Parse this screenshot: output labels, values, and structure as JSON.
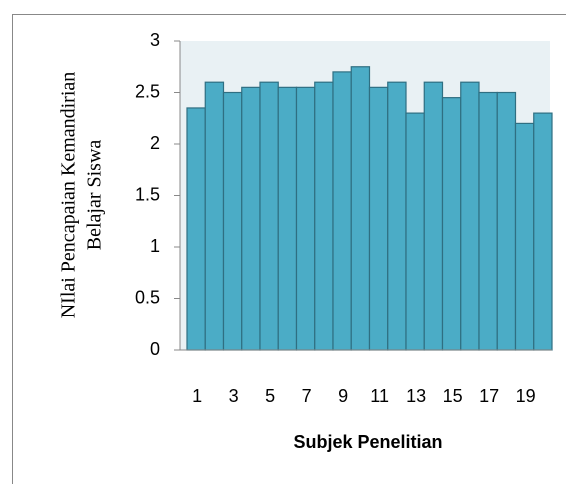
{
  "chart_data": {
    "type": "bar",
    "xlabel": "Subjek Penelitian",
    "ylabel": [
      "NIlai Pencapaian Kemandirian",
      "Belajar Siswa"
    ],
    "categories": [
      "1",
      null,
      "3",
      null,
      "5",
      null,
      "7",
      null,
      "9",
      null,
      "11",
      null,
      "13",
      null,
      "15",
      null,
      "17",
      null,
      "19",
      null
    ],
    "values": [
      2.35,
      2.6,
      2.5,
      2.55,
      2.6,
      2.55,
      2.55,
      2.6,
      2.7,
      2.75,
      2.55,
      2.6,
      2.3,
      2.6,
      2.45,
      2.6,
      2.5,
      2.5,
      2.2,
      2.3
    ],
    "color": "#4bacc6",
    "ylim": [
      0,
      3
    ],
    "yticks": [
      0,
      0.5,
      1,
      1.5,
      2,
      2.5,
      3
    ]
  }
}
